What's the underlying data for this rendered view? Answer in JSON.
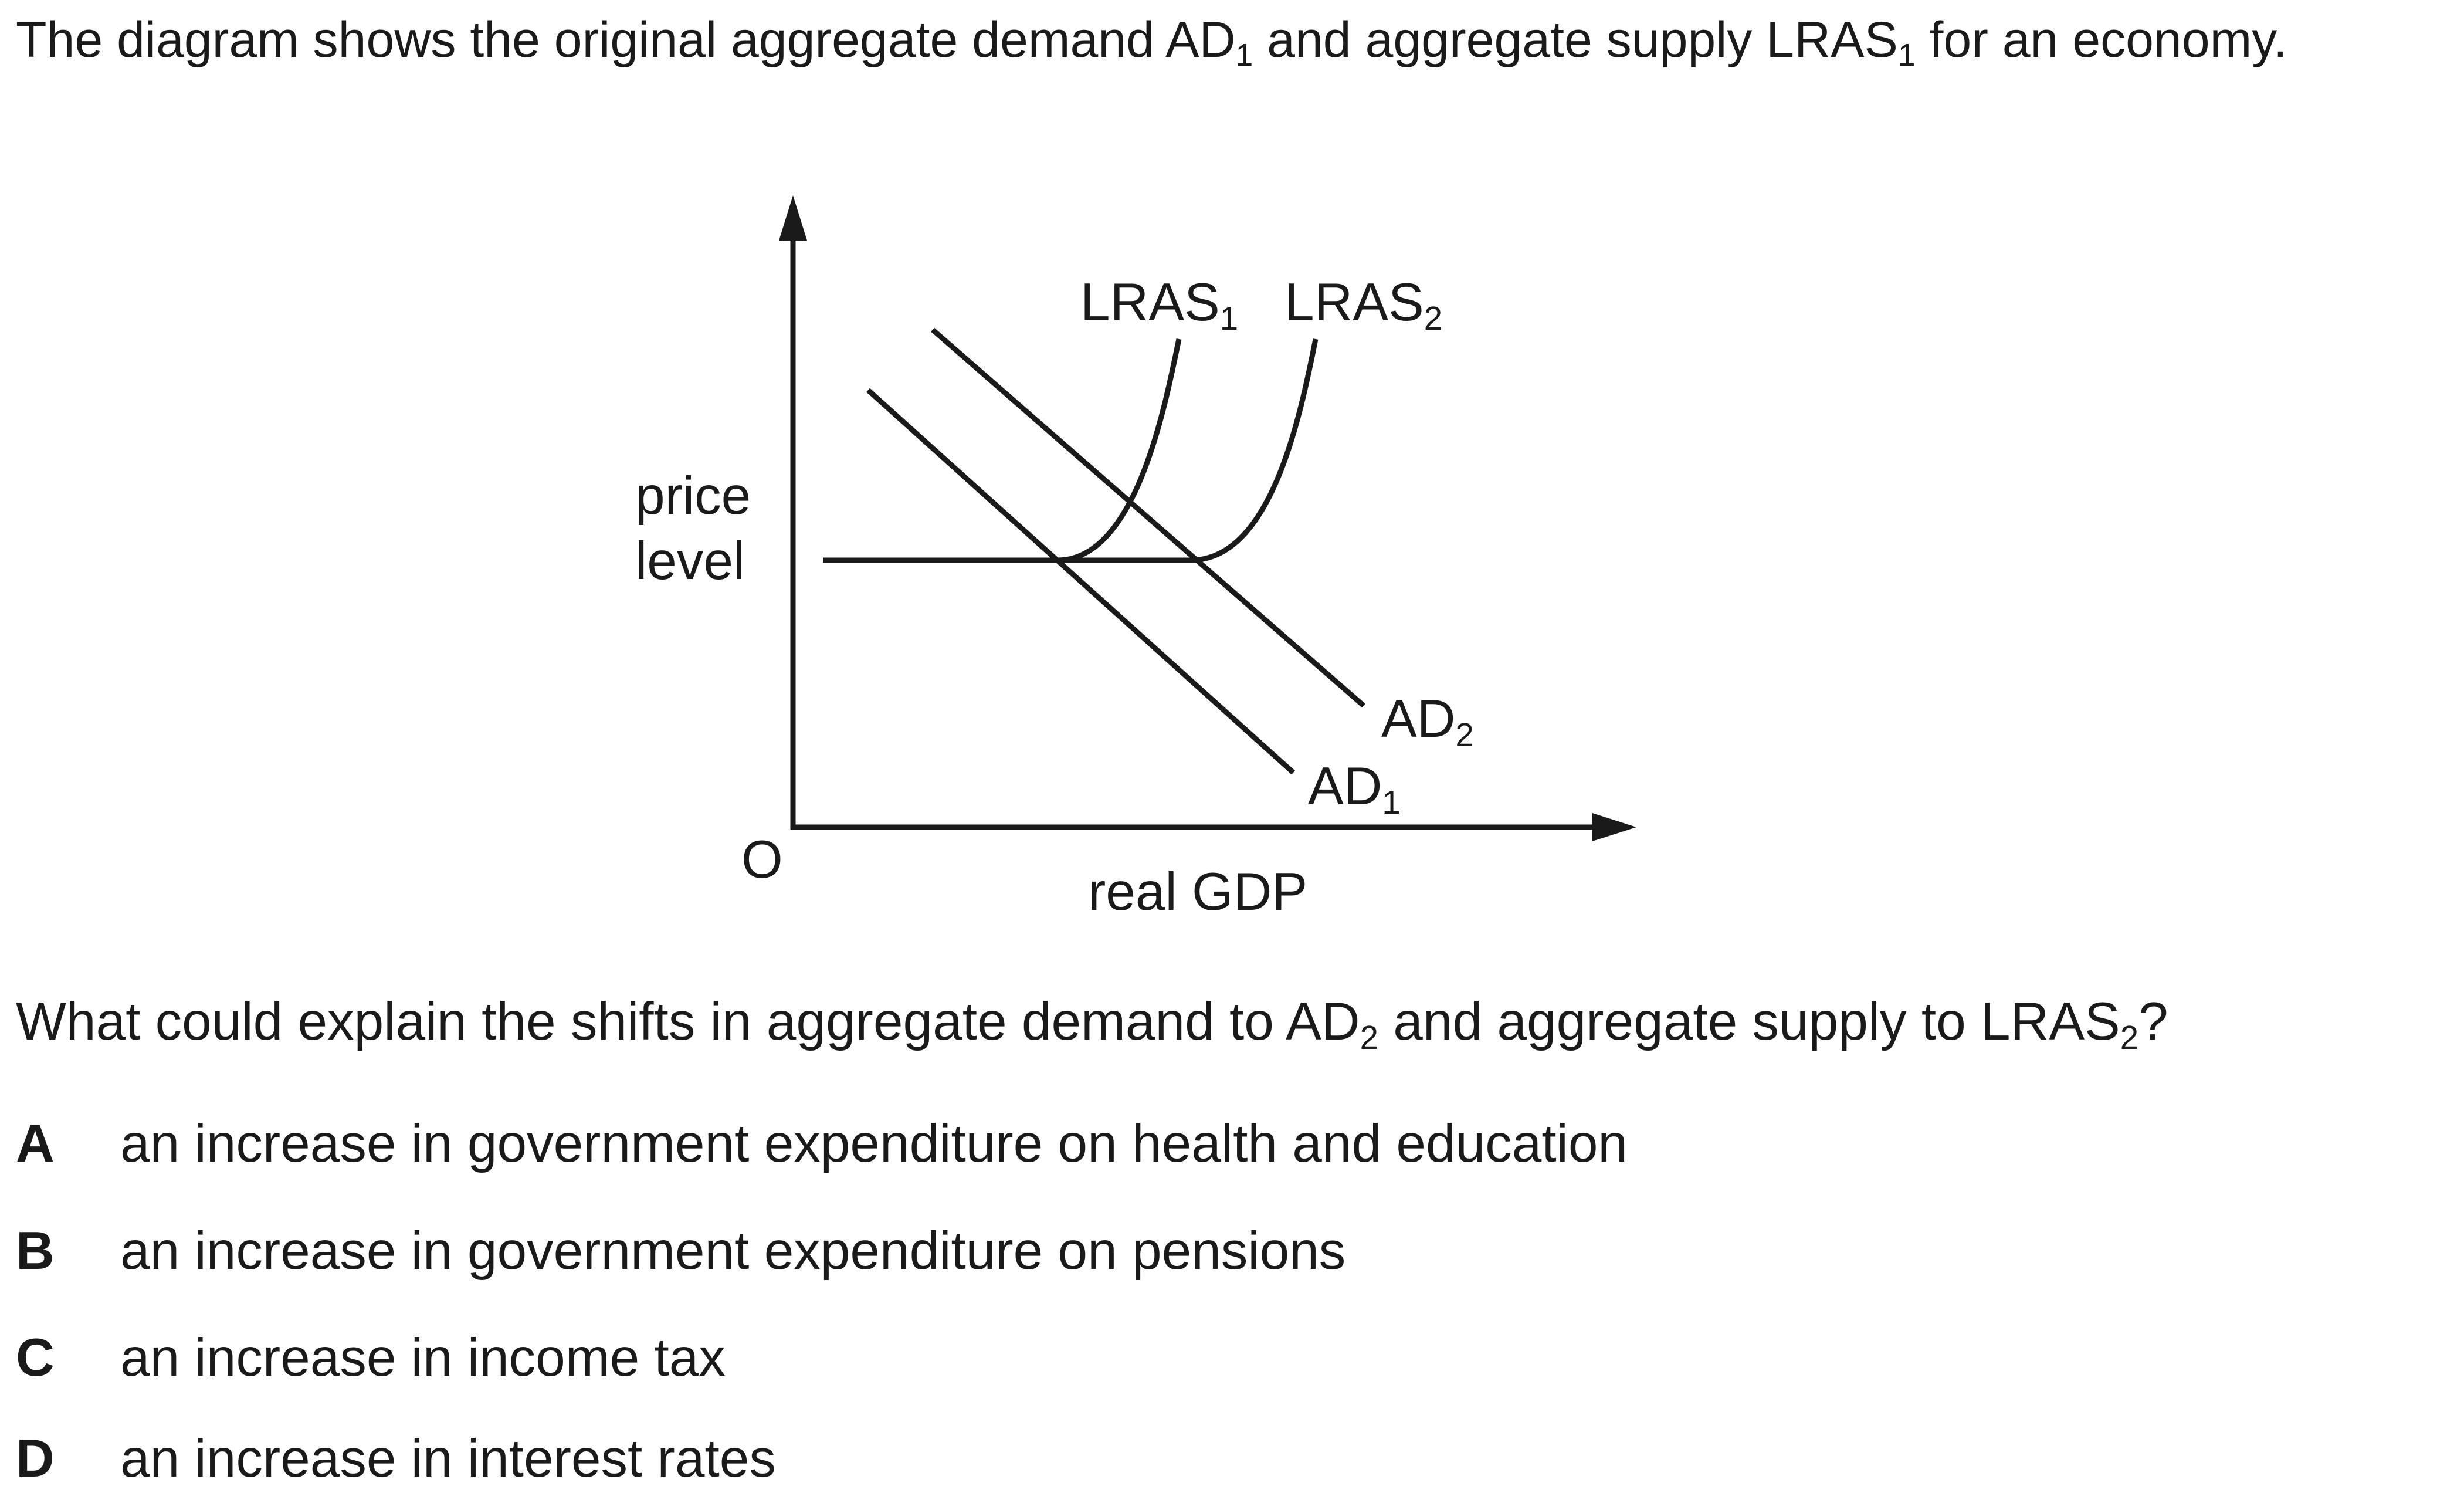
{
  "intro": {
    "before_ad": "The diagram shows the original aggregate demand ",
    "ad": "AD",
    "ad_sub": "1",
    "middle": " and aggregate supply ",
    "lras": "LRAS",
    "lras_sub": "1",
    "after": " for an economy."
  },
  "diagram": {
    "y_axis_label_line1": "price",
    "y_axis_label_line2": "level",
    "x_axis_label": "real GDP",
    "origin_label": "O",
    "curves": {
      "lras1": {
        "name": "LRAS",
        "sub": "1"
      },
      "lras2": {
        "name": "LRAS",
        "sub": "2"
      },
      "ad1": {
        "name": "AD",
        "sub": "1"
      },
      "ad2": {
        "name": "AD",
        "sub": "2"
      }
    }
  },
  "question": {
    "before_ad": "What could explain the shifts in aggregate demand to ",
    "ad": "AD",
    "ad_sub": "2",
    "middle": " and aggregate supply to ",
    "lras": "LRAS",
    "lras_sub": "2",
    "after": "?"
  },
  "options": [
    {
      "letter": "A",
      "text": "an increase in government expenditure on health and education"
    },
    {
      "letter": "B",
      "text": "an increase in government expenditure on pensions"
    },
    {
      "letter": "C",
      "text": "an increase in income tax"
    },
    {
      "letter": "D",
      "text": "an increase in interest rates"
    }
  ]
}
